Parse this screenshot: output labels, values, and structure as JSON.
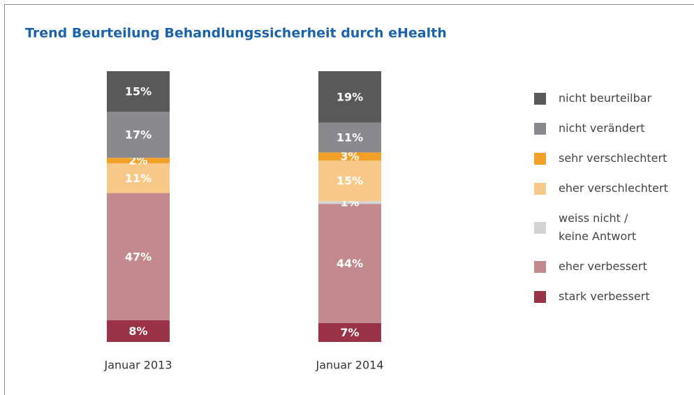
{
  "chart_data": {
    "type": "stacked_bar",
    "title": "Trend Beurteilung Behandlungssicherheit durch eHealth",
    "categories": [
      "Januar 2013",
      "Januar 2014"
    ],
    "ylim": [
      0,
      100
    ],
    "series": [
      {
        "name": "stark verbessert",
        "color": "#9b3346",
        "values": [
          8,
          7
        ],
        "value_labels": [
          "8%",
          "7%"
        ]
      },
      {
        "name": "eher verbessert",
        "color": "#c28a8c",
        "values": [
          47,
          44
        ],
        "value_labels": [
          "47%",
          "44%"
        ]
      },
      {
        "name": "weiss nicht /\nkeine Antwort",
        "color": "#d3d3d3",
        "values": [
          null,
          1
        ],
        "value_labels": [
          null,
          "1%"
        ]
      },
      {
        "name": "eher verschlechtert",
        "color": "#f8c889",
        "values": [
          11,
          15
        ],
        "value_labels": [
          "11%",
          "15%"
        ]
      },
      {
        "name": "sehr verschlechtert",
        "color": "#f3a028",
        "values": [
          2,
          3
        ],
        "value_labels": [
          "2%",
          "3%"
        ]
      },
      {
        "name": "nicht verändert",
        "color": "#8a8a8e",
        "values": [
          17,
          11
        ],
        "value_labels": [
          "17%",
          "11%"
        ]
      },
      {
        "name": "nicht beurteilbar",
        "color": "#58595b",
        "values": [
          15,
          19
        ],
        "value_labels": [
          "15%",
          "19%"
        ]
      }
    ]
  }
}
